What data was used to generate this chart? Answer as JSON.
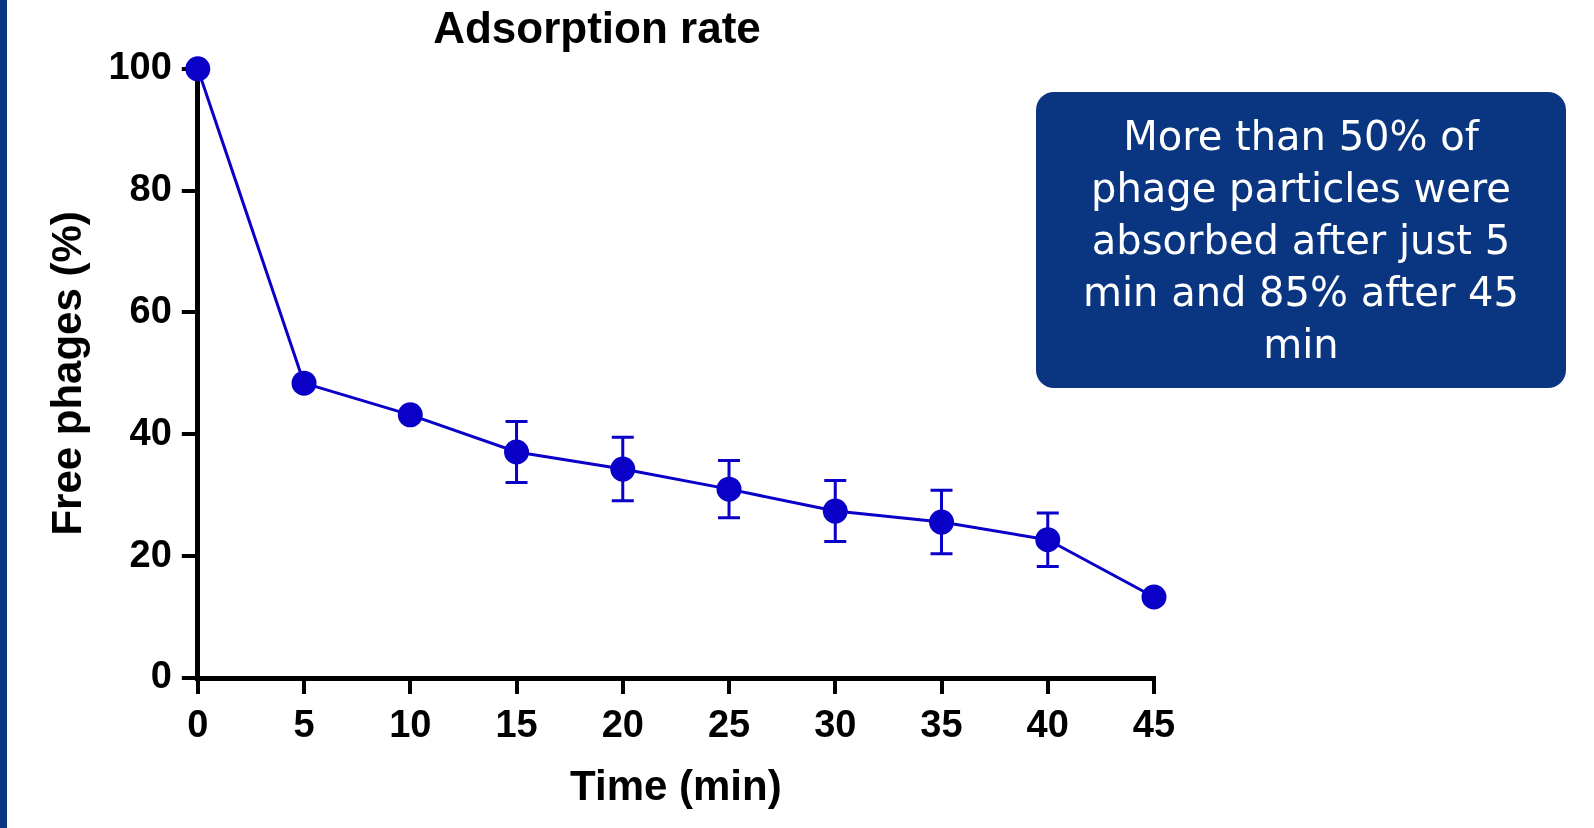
{
  "chart_data": {
    "type": "line",
    "title": "Adsorption rate",
    "xlabel": "Time (min)",
    "ylabel": "Free phages (%)",
    "x": [
      0,
      5,
      10,
      15,
      20,
      25,
      30,
      35,
      40,
      45
    ],
    "series": [
      {
        "color": "#0a00c8",
        "values": [
          100,
          48.4,
          43.2,
          37.1,
          34.3,
          31.0,
          27.4,
          25.6,
          22.7,
          13.3
        ],
        "errors": [
          null,
          null,
          null,
          5.0,
          5.2,
          4.7,
          5.0,
          5.2,
          4.4,
          null
        ]
      }
    ],
    "xlim": [
      0,
      45
    ],
    "xticks": [
      0,
      5,
      10,
      15,
      20,
      25,
      30,
      35,
      40,
      45
    ],
    "ylim": [
      0,
      100
    ],
    "yticks": [
      0,
      20,
      40,
      60,
      80,
      100
    ],
    "grid": false,
    "legend": false,
    "marker": "circle",
    "line_style": "solid",
    "annotations": [
      "More than 50% of phage particles were absorbed after just 5 min and 85% after 45 min"
    ]
  }
}
